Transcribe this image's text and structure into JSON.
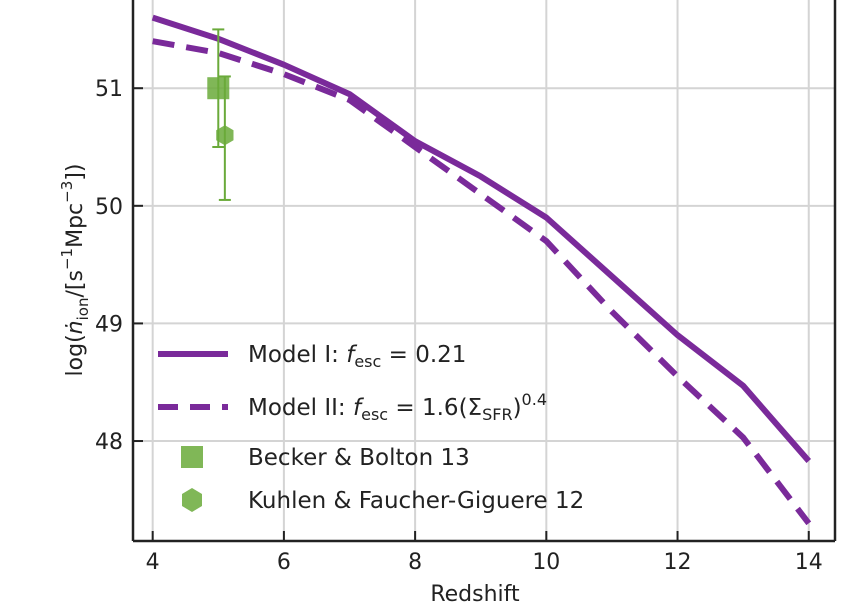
{
  "chart_data": {
    "type": "line",
    "xlabel": "Redshift",
    "ylabel_parts": {
      "pre": "log(",
      "symbol": "ṅ",
      "sub": "ion",
      "mid": "/[s",
      "sup1": "−1",
      "mid2": "Mpc",
      "sup2": "−3",
      "post": "])"
    },
    "xlim": [
      3.7,
      14.4
    ],
    "ylim": [
      47.15,
      51.75
    ],
    "x_ticks": [
      4,
      6,
      8,
      10,
      12,
      14
    ],
    "y_ticks": [
      48,
      49,
      50,
      51
    ],
    "x_tick_labels": [
      "4",
      "6",
      "8",
      "10",
      "12",
      "14"
    ],
    "y_tick_labels": [
      "48",
      "49",
      "50",
      "51"
    ],
    "grid": true,
    "legend_position": "bottom-left",
    "colors": {
      "model": "#7a2a9a",
      "obs": "#6aaa3a",
      "grid": "#d4d4d4",
      "axis": "#222222"
    },
    "series": [
      {
        "name_parts": {
          "pre": "Model I: ",
          "f": "f",
          "sub": "esc",
          "post": " = 0.21"
        },
        "style": "solid",
        "x": [
          4,
          5,
          6,
          7,
          8,
          9,
          10,
          11,
          12,
          13,
          14
        ],
        "y": [
          51.6,
          51.42,
          51.2,
          50.95,
          50.55,
          50.25,
          49.9,
          49.4,
          48.9,
          48.47,
          47.83
        ]
      },
      {
        "name_parts": {
          "pre": "Model II: ",
          "f": "f",
          "sub": "esc",
          "mid": " = 1.6(Σ",
          "sub2": "SFR",
          "mid2": ")",
          "sup": "0.4"
        },
        "style": "dashed",
        "x": [
          4,
          5,
          6,
          7,
          8,
          9,
          10,
          11,
          12,
          13,
          14
        ],
        "y": [
          51.4,
          51.3,
          51.12,
          50.9,
          50.5,
          50.1,
          49.7,
          49.1,
          48.55,
          48.03,
          47.3
        ]
      }
    ],
    "observations": [
      {
        "name": "Becker & Bolton 13",
        "marker": "square",
        "x": 5.0,
        "y": 51.0,
        "yerr_low": 0.5,
        "yerr_high": 0.5
      },
      {
        "name": "Kuhlen & Faucher-Giguere 12",
        "marker": "hexagon",
        "x": 5.1,
        "y": 50.6,
        "yerr_low": 0.55,
        "yerr_high": 0.5
      }
    ]
  }
}
